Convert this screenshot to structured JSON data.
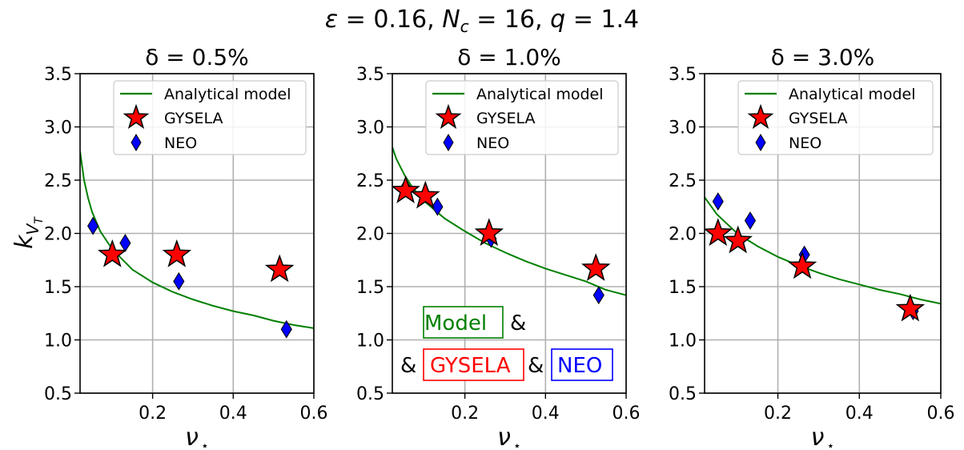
{
  "figure": {
    "suptitle_eps": "ε",
    "suptitle_eps_val": " = 0.16, ",
    "suptitle_N": "N",
    "suptitle_N_sub": "c",
    "suptitle_N_val": " = 16, ",
    "suptitle_q": "q",
    "suptitle_q_val": " = 1.4",
    "xlabel_symbol": "ν",
    "xlabel_sub": "⋆",
    "ylabel_symbol": "k",
    "ylabel_sub": "V",
    "ylabel_subsub": "T",
    "colors": {
      "model": "#008000",
      "gysela": "#ff0000",
      "neo": "#0000ff",
      "grid": "#b0b0b0"
    }
  },
  "chart_data": [
    {
      "type": "scatter",
      "title": "δ = 0.5%",
      "xlim": [
        0.02,
        0.6
      ],
      "ylim": [
        0.5,
        3.5
      ],
      "xticks": [
        0.2,
        0.4,
        0.6
      ],
      "yticks": [
        0.5,
        1.0,
        1.5,
        2.0,
        2.5,
        3.0,
        3.5
      ],
      "grid": true,
      "legend_position": "top-right",
      "legend": [
        "Analytical model",
        "GYSELA",
        "NEO"
      ],
      "series": [
        {
          "name": "Analytical model",
          "kind": "line",
          "x": [
            0.02,
            0.03,
            0.04,
            0.05,
            0.07,
            0.1,
            0.15,
            0.2,
            0.25,
            0.3,
            0.35,
            0.4,
            0.45,
            0.5,
            0.55,
            0.6
          ],
          "y": [
            2.77,
            2.5,
            2.33,
            2.2,
            2.02,
            1.85,
            1.66,
            1.54,
            1.45,
            1.38,
            1.32,
            1.27,
            1.23,
            1.18,
            1.14,
            1.11
          ]
        },
        {
          "name": "GYSELA",
          "kind": "star",
          "x": [
            0.1,
            0.26,
            0.515
          ],
          "y": [
            1.8,
            1.8,
            1.66
          ]
        },
        {
          "name": "NEO",
          "kind": "diamond",
          "x": [
            0.052,
            0.132,
            0.265,
            0.532
          ],
          "y": [
            2.07,
            1.91,
            1.55,
            1.1
          ]
        }
      ]
    },
    {
      "type": "scatter",
      "title": "δ = 1.0%",
      "xlim": [
        0.02,
        0.6
      ],
      "ylim": [
        0.5,
        3.5
      ],
      "xticks": [
        0.2,
        0.4,
        0.6
      ],
      "yticks": [
        0.5,
        1.0,
        1.5,
        2.0,
        2.5,
        3.0,
        3.5
      ],
      "grid": true,
      "legend_position": "top-right",
      "legend": [
        "Analytical model",
        "GYSELA",
        "NEO"
      ],
      "series": [
        {
          "name": "Analytical model",
          "kind": "line",
          "x": [
            0.02,
            0.03,
            0.05,
            0.07,
            0.1,
            0.15,
            0.2,
            0.25,
            0.3,
            0.35,
            0.4,
            0.45,
            0.5,
            0.55,
            0.6
          ],
          "y": [
            2.81,
            2.7,
            2.55,
            2.43,
            2.3,
            2.14,
            2.02,
            1.91,
            1.82,
            1.74,
            1.67,
            1.61,
            1.55,
            1.47,
            1.42
          ]
        },
        {
          "name": "GYSELA",
          "kind": "star",
          "x": [
            0.053,
            0.102,
            0.26,
            0.525
          ],
          "y": [
            2.4,
            2.35,
            2.0,
            1.67
          ]
        },
        {
          "name": "NEO",
          "kind": "diamond",
          "x": [
            0.053,
            0.132,
            0.265,
            0.532
          ],
          "y": [
            2.43,
            2.25,
            1.95,
            1.42
          ]
        }
      ],
      "annotations": [
        {
          "text": "Model",
          "color": "#008000"
        },
        {
          "text": "&",
          "color": "#000000"
        },
        {
          "text": "&",
          "color": "#000000"
        },
        {
          "text": "GYSELA",
          "color": "#ff0000"
        },
        {
          "text": "&",
          "color": "#000000"
        },
        {
          "text": "NEO",
          "color": "#0000ff"
        }
      ]
    },
    {
      "type": "scatter",
      "title": "δ = 3.0%",
      "xlim": [
        0.02,
        0.6
      ],
      "ylim": [
        0.5,
        3.5
      ],
      "xticks": [
        0.2,
        0.4,
        0.6
      ],
      "yticks": [
        0.5,
        1.0,
        1.5,
        2.0,
        2.5,
        3.0,
        3.5
      ],
      "grid": true,
      "legend_position": "top-right",
      "legend": [
        "Analytical model",
        "GYSELA",
        "NEO"
      ],
      "series": [
        {
          "name": "Analytical model",
          "kind": "line",
          "x": [
            0.02,
            0.05,
            0.1,
            0.15,
            0.2,
            0.25,
            0.3,
            0.35,
            0.4,
            0.45,
            0.5,
            0.55,
            0.6
          ],
          "y": [
            2.34,
            2.18,
            2.0,
            1.88,
            1.78,
            1.7,
            1.63,
            1.57,
            1.52,
            1.47,
            1.43,
            1.38,
            1.34
          ]
        },
        {
          "name": "GYSELA",
          "kind": "star",
          "x": [
            0.053,
            0.102,
            0.26,
            0.525
          ],
          "y": [
            2.0,
            1.93,
            1.69,
            1.29
          ]
        },
        {
          "name": "NEO",
          "kind": "diamond",
          "x": [
            0.053,
            0.132,
            0.265,
            0.532
          ],
          "y": [
            2.3,
            2.12,
            1.8,
            1.27
          ]
        }
      ]
    }
  ]
}
